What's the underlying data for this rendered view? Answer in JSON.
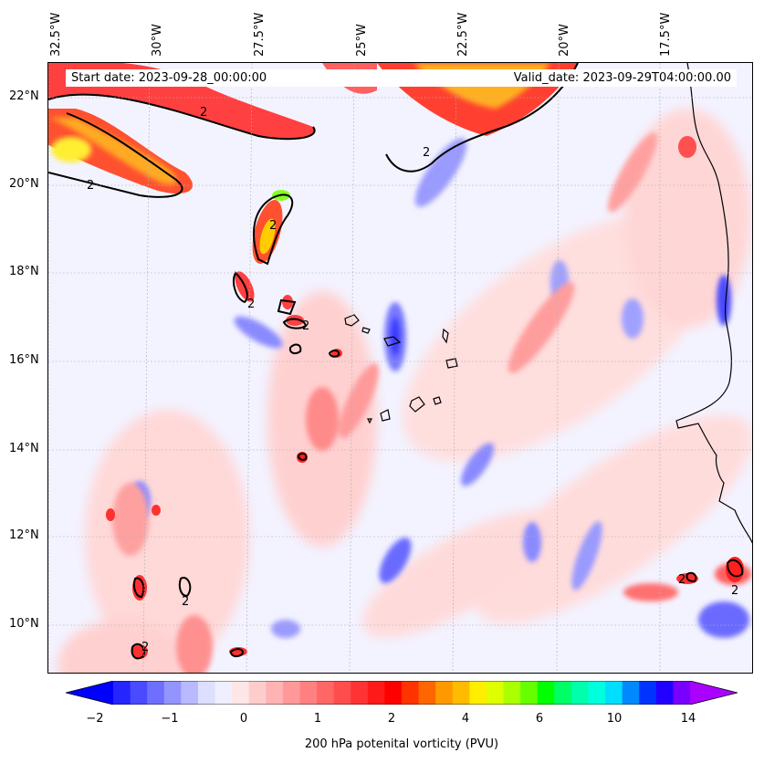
{
  "map": {
    "start_date": "Start date: 2023-09-28_00:00:00",
    "valid_date": "Valid_date: 2023-09-29T04:00:00.00",
    "longitude_labels": [
      "32.5°W",
      "30°W",
      "27.5°W",
      "25°W",
      "22.5°W",
      "20°W",
      "17.5°W"
    ],
    "latitude_labels": [
      "22°N",
      "20°N",
      "18°N",
      "16°N",
      "14°N",
      "12°N",
      "10°N"
    ],
    "contour_label": "2",
    "colors": {
      "background_near_zero": "#eef0ff",
      "positive_low": "#ffc0c0",
      "positive_mid": "#ff3030",
      "positive_high": "#ff9900",
      "negative": "#8080ff",
      "contour": "#000000",
      "coastline": "#000000"
    }
  },
  "colorbar": {
    "tick_labels": [
      "−2",
      "−1",
      "0",
      "1",
      "2",
      "4",
      "6",
      "10",
      "14"
    ],
    "label": "200 hPa potenital vorticity (PVU)",
    "colors": [
      "#0000ff",
      "#2525ff",
      "#4a4aff",
      "#6f6fff",
      "#9494ff",
      "#b9b9ff",
      "#dedeff",
      "#efefff",
      "#ffe6e6",
      "#ffcccc",
      "#ffb3b3",
      "#ff9999",
      "#ff8080",
      "#ff6666",
      "#ff4d4d",
      "#ff3333",
      "#ff1a1a",
      "#ff0000",
      "#ff3300",
      "#ff6600",
      "#ff9900",
      "#ffbb00",
      "#ffee00",
      "#ddff00",
      "#aaff00",
      "#66ff00",
      "#00ff00",
      "#00ff66",
      "#00ffaa",
      "#00ffdd",
      "#00ddff",
      "#0088ff",
      "#0033ff",
      "#2200ff",
      "#7700ff",
      "#aa00ff"
    ]
  }
}
